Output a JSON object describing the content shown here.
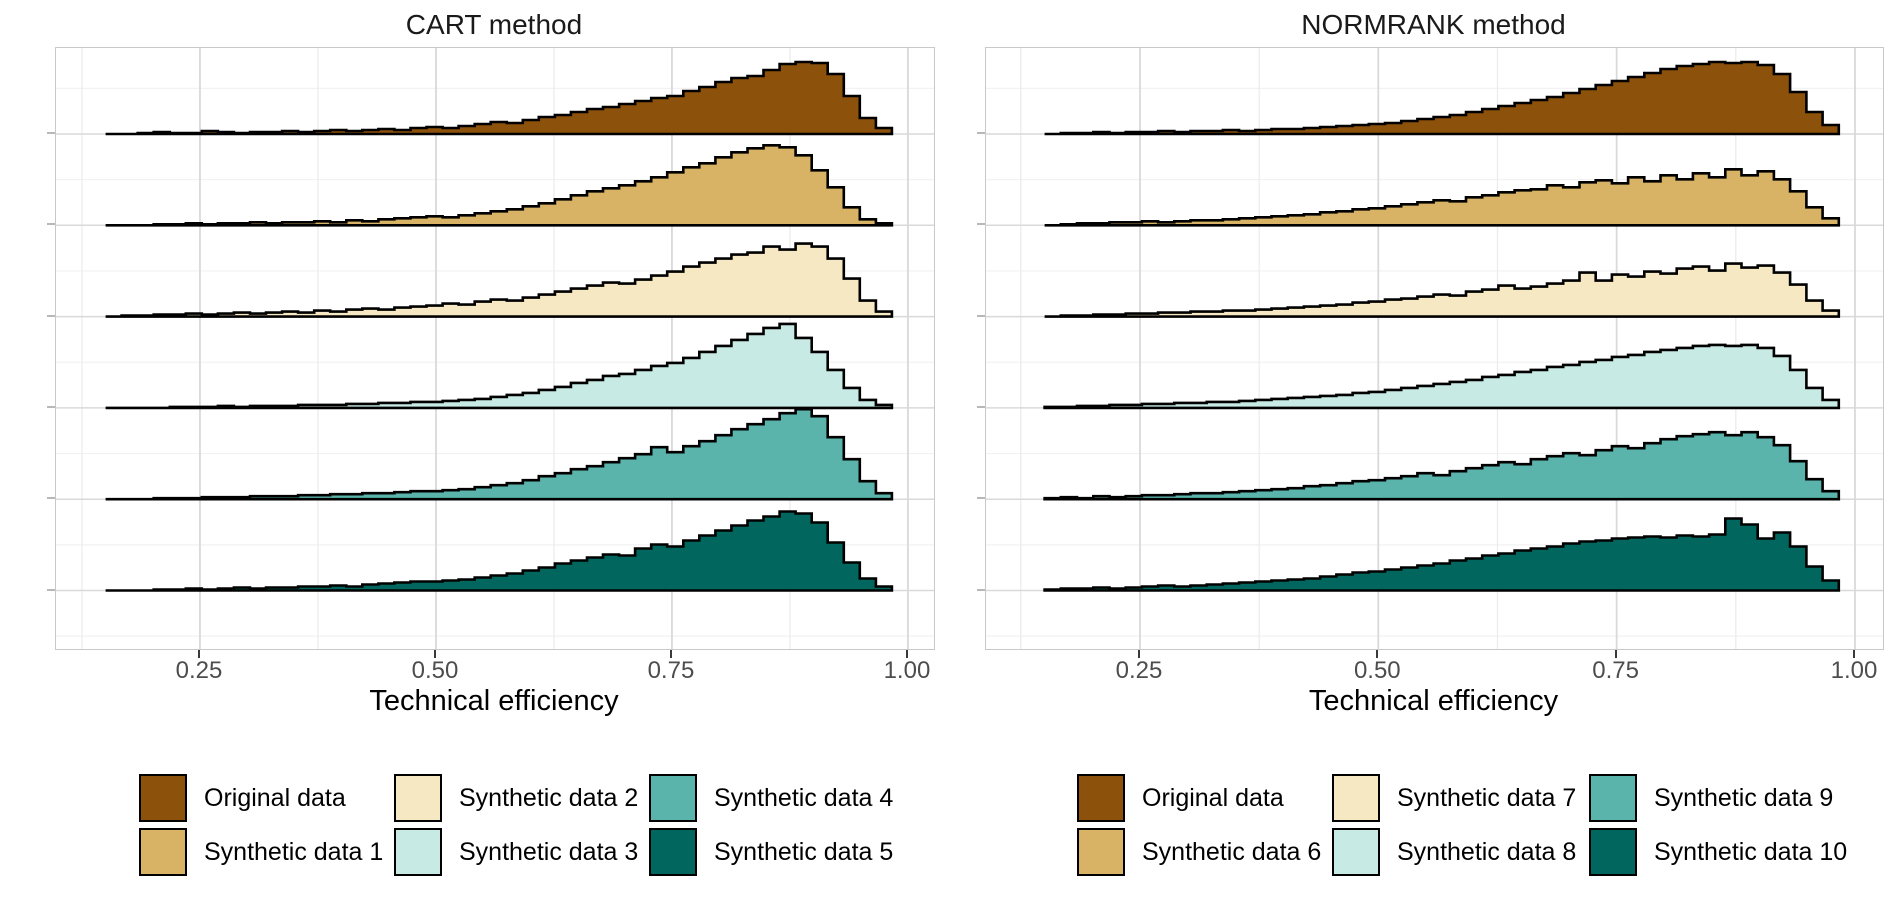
{
  "chart_data": {
    "type": "ridgeline-histogram",
    "description": "Two ridgeline panels of overlaid histograms of technical efficiency for original vs synthetic datasets. Heights are relative density in render pixels (baseline spacing = 91.3px).",
    "x_axis": {
      "label": "Technical efficiency",
      "bin_start": 0.15,
      "bin_width": 0.017,
      "n_bins": 49
    },
    "panels": [
      {
        "title": "CART method",
        "xlabel": "Technical efficiency",
        "x_domain": [
          0.0975,
          1.0276
        ],
        "x_ticks": [
          {
            "v": 0.25,
            "label": "0.25"
          },
          {
            "v": 0.5,
            "label": "0.50"
          },
          {
            "v": 0.75,
            "label": "0.75"
          },
          {
            "v": 1.0,
            "label": "1.00"
          }
        ],
        "x_minor": [
          0.125,
          0.375,
          0.625,
          0.875
        ],
        "ridges": [
          {
            "name": "Original data",
            "color": "#8c510a",
            "heights": [
              0,
              0,
              1,
              2,
              1,
              1,
              3,
              2,
              1,
              2,
              2,
              3,
              2,
              3,
              4,
              3,
              4,
              5,
              4,
              6,
              7,
              6,
              8,
              10,
              12,
              11,
              14,
              17,
              19,
              22,
              25,
              27,
              30,
              33,
              36,
              38,
              43,
              47,
              52,
              56,
              58,
              64,
              70,
              72,
              71,
              60,
              38,
              16,
              6
            ]
          },
          {
            "name": "Synthetic data 1",
            "color": "#d8b365",
            "heights": [
              0,
              0,
              0,
              1,
              1,
              2,
              1,
              2,
              2,
              3,
              2,
              3,
              3,
              4,
              3,
              5,
              4,
              6,
              7,
              8,
              9,
              8,
              10,
              12,
              14,
              16,
              19,
              22,
              26,
              30,
              34,
              37,
              40,
              44,
              48,
              53,
              58,
              62,
              68,
              73,
              77,
              80,
              78,
              70,
              55,
              38,
              18,
              6,
              2
            ]
          },
          {
            "name": "Synthetic data 2",
            "color": "#f6e8c3",
            "heights": [
              0,
              1,
              1,
              2,
              2,
              3,
              2,
              3,
              4,
              3,
              4,
              5,
              4,
              6,
              5,
              7,
              8,
              7,
              9,
              10,
              11,
              13,
              12,
              15,
              17,
              16,
              19,
              22,
              25,
              28,
              31,
              34,
              33,
              37,
              41,
              45,
              50,
              54,
              58,
              62,
              64,
              70,
              67,
              73,
              70,
              58,
              38,
              16,
              5
            ]
          },
          {
            "name": "Synthetic data 3",
            "color": "#c7eae5",
            "heights": [
              0,
              0,
              0,
              0,
              1,
              1,
              1,
              2,
              1,
              2,
              2,
              2,
              3,
              3,
              3,
              4,
              4,
              5,
              5,
              6,
              6,
              7,
              8,
              9,
              11,
              13,
              15,
              18,
              21,
              25,
              28,
              32,
              34,
              38,
              42,
              45,
              50,
              56,
              62,
              68,
              74,
              80,
              84,
              70,
              56,
              38,
              20,
              8,
              3
            ]
          },
          {
            "name": "Synthetic data 4",
            "color": "#5ab4ac",
            "heights": [
              0,
              0,
              0,
              1,
              1,
              1,
              2,
              2,
              2,
              3,
              3,
              3,
              4,
              4,
              5,
              5,
              6,
              6,
              7,
              8,
              8,
              9,
              10,
              12,
              14,
              16,
              19,
              23,
              26,
              30,
              33,
              37,
              41,
              45,
              52,
              47,
              53,
              58,
              64,
              70,
              75,
              80,
              86,
              90,
              83,
              62,
              40,
              18,
              6
            ]
          },
          {
            "name": "Synthetic data 5",
            "color": "#01665e",
            "heights": [
              0,
              0,
              0,
              1,
              1,
              2,
              1,
              2,
              3,
              2,
              3,
              3,
              4,
              4,
              5,
              4,
              6,
              7,
              8,
              9,
              9,
              10,
              11,
              13,
              15,
              17,
              20,
              23,
              27,
              30,
              33,
              36,
              35,
              42,
              46,
              44,
              50,
              55,
              60,
              65,
              70,
              74,
              79,
              77,
              68,
              48,
              28,
              12,
              4
            ]
          }
        ],
        "legend": [
          {
            "label": "Original data",
            "color": "#8c510a"
          },
          {
            "label": "Synthetic data 1",
            "color": "#d8b365"
          },
          {
            "label": "Synthetic data 2",
            "color": "#f6e8c3"
          },
          {
            "label": "Synthetic data 3",
            "color": "#c7eae5"
          },
          {
            "label": "Synthetic data 4",
            "color": "#5ab4ac"
          },
          {
            "label": "Synthetic data 5",
            "color": "#01665e"
          }
        ]
      },
      {
        "title": "NORMRANK method",
        "xlabel": "Technical efficiency",
        "x_domain": [
          0.0885,
          1.0294
        ],
        "x_ticks": [
          {
            "v": 0.25,
            "label": "0.25"
          },
          {
            "v": 0.5,
            "label": "0.50"
          },
          {
            "v": 0.75,
            "label": "0.75"
          },
          {
            "v": 1.0,
            "label": "1.00"
          }
        ],
        "x_minor": [
          0.125,
          0.375,
          0.625,
          0.875
        ],
        "ridges": [
          {
            "name": "Original data",
            "color": "#8c510a",
            "heights": [
              0,
              1,
              1,
              2,
              1,
              2,
              2,
              3,
              2,
              3,
              3,
              4,
              3,
              4,
              5,
              5,
              6,
              7,
              8,
              9,
              10,
              11,
              13,
              15,
              17,
              19,
              22,
              25,
              28,
              31,
              34,
              37,
              41,
              45,
              49,
              53,
              57,
              61,
              65,
              68,
              70,
              72,
              71,
              72,
              69,
              60,
              42,
              22,
              9
            ]
          },
          {
            "name": "Synthetic data 6",
            "color": "#d8b365",
            "heights": [
              0,
              1,
              2,
              2,
              3,
              3,
              4,
              3,
              4,
              5,
              5,
              6,
              7,
              8,
              9,
              10,
              11,
              13,
              14,
              16,
              17,
              19,
              21,
              23,
              25,
              24,
              28,
              30,
              33,
              35,
              36,
              40,
              38,
              43,
              45,
              42,
              48,
              44,
              50,
              46,
              52,
              48,
              56,
              50,
              54,
              46,
              34,
              18,
              7
            ]
          },
          {
            "name": "Synthetic data 7",
            "color": "#f6e8c3",
            "heights": [
              0,
              1,
              1,
              2,
              2,
              3,
              3,
              4,
              4,
              5,
              5,
              6,
              6,
              7,
              8,
              9,
              10,
              11,
              12,
              14,
              15,
              17,
              18,
              20,
              22,
              21,
              25,
              27,
              31,
              28,
              30,
              33,
              36,
              44,
              36,
              42,
              40,
              45,
              43,
              48,
              50,
              46,
              53,
              49,
              51,
              44,
              32,
              16,
              6
            ]
          },
          {
            "name": "Synthetic data 8",
            "color": "#c7eae5",
            "heights": [
              1,
              1,
              2,
              2,
              3,
              3,
              4,
              4,
              5,
              5,
              6,
              6,
              7,
              8,
              9,
              10,
              11,
              12,
              13,
              15,
              16,
              18,
              20,
              22,
              24,
              26,
              28,
              31,
              33,
              36,
              38,
              41,
              43,
              46,
              48,
              51,
              53,
              56,
              58,
              60,
              62,
              63,
              62,
              63,
              60,
              52,
              38,
              20,
              8
            ]
          },
          {
            "name": "Synthetic data 9",
            "color": "#5ab4ac",
            "heights": [
              1,
              2,
              1,
              3,
              2,
              3,
              4,
              4,
              5,
              6,
              6,
              7,
              8,
              9,
              10,
              11,
              13,
              14,
              16,
              18,
              19,
              21,
              23,
              26,
              24,
              28,
              31,
              34,
              37,
              35,
              40,
              43,
              46,
              44,
              49,
              53,
              51,
              56,
              60,
              63,
              65,
              67,
              64,
              67,
              62,
              54,
              38,
              20,
              8
            ]
          },
          {
            "name": "Synthetic data 10",
            "color": "#01665e",
            "heights": [
              1,
              2,
              2,
              3,
              2,
              3,
              4,
              5,
              4,
              5,
              6,
              7,
              8,
              9,
              10,
              11,
              12,
              14,
              16,
              18,
              19,
              21,
              23,
              25,
              27,
              30,
              32,
              35,
              37,
              40,
              42,
              44,
              47,
              49,
              50,
              52,
              53,
              54,
              53,
              55,
              54,
              56,
              72,
              66,
              52,
              58,
              44,
              24,
              10
            ]
          }
        ],
        "legend": [
          {
            "label": "Original data",
            "color": "#8c510a"
          },
          {
            "label": "Synthetic data 6",
            "color": "#d8b365"
          },
          {
            "label": "Synthetic data 7",
            "color": "#f6e8c3"
          },
          {
            "label": "Synthetic data 8",
            "color": "#c7eae5"
          },
          {
            "label": "Synthetic data 9",
            "color": "#5ab4ac"
          },
          {
            "label": "Synthetic data 10",
            "color": "#01665e"
          }
        ]
      }
    ],
    "style_colors": {
      "outline": "#000000",
      "panel_border": "#c9c9c9",
      "grid_major": "#d9d9d9",
      "grid_minor": "#ececec",
      "grid_minor_h": "#f2f2f2",
      "tick_label": "#4d4d4d",
      "background": "#ffffff"
    }
  }
}
